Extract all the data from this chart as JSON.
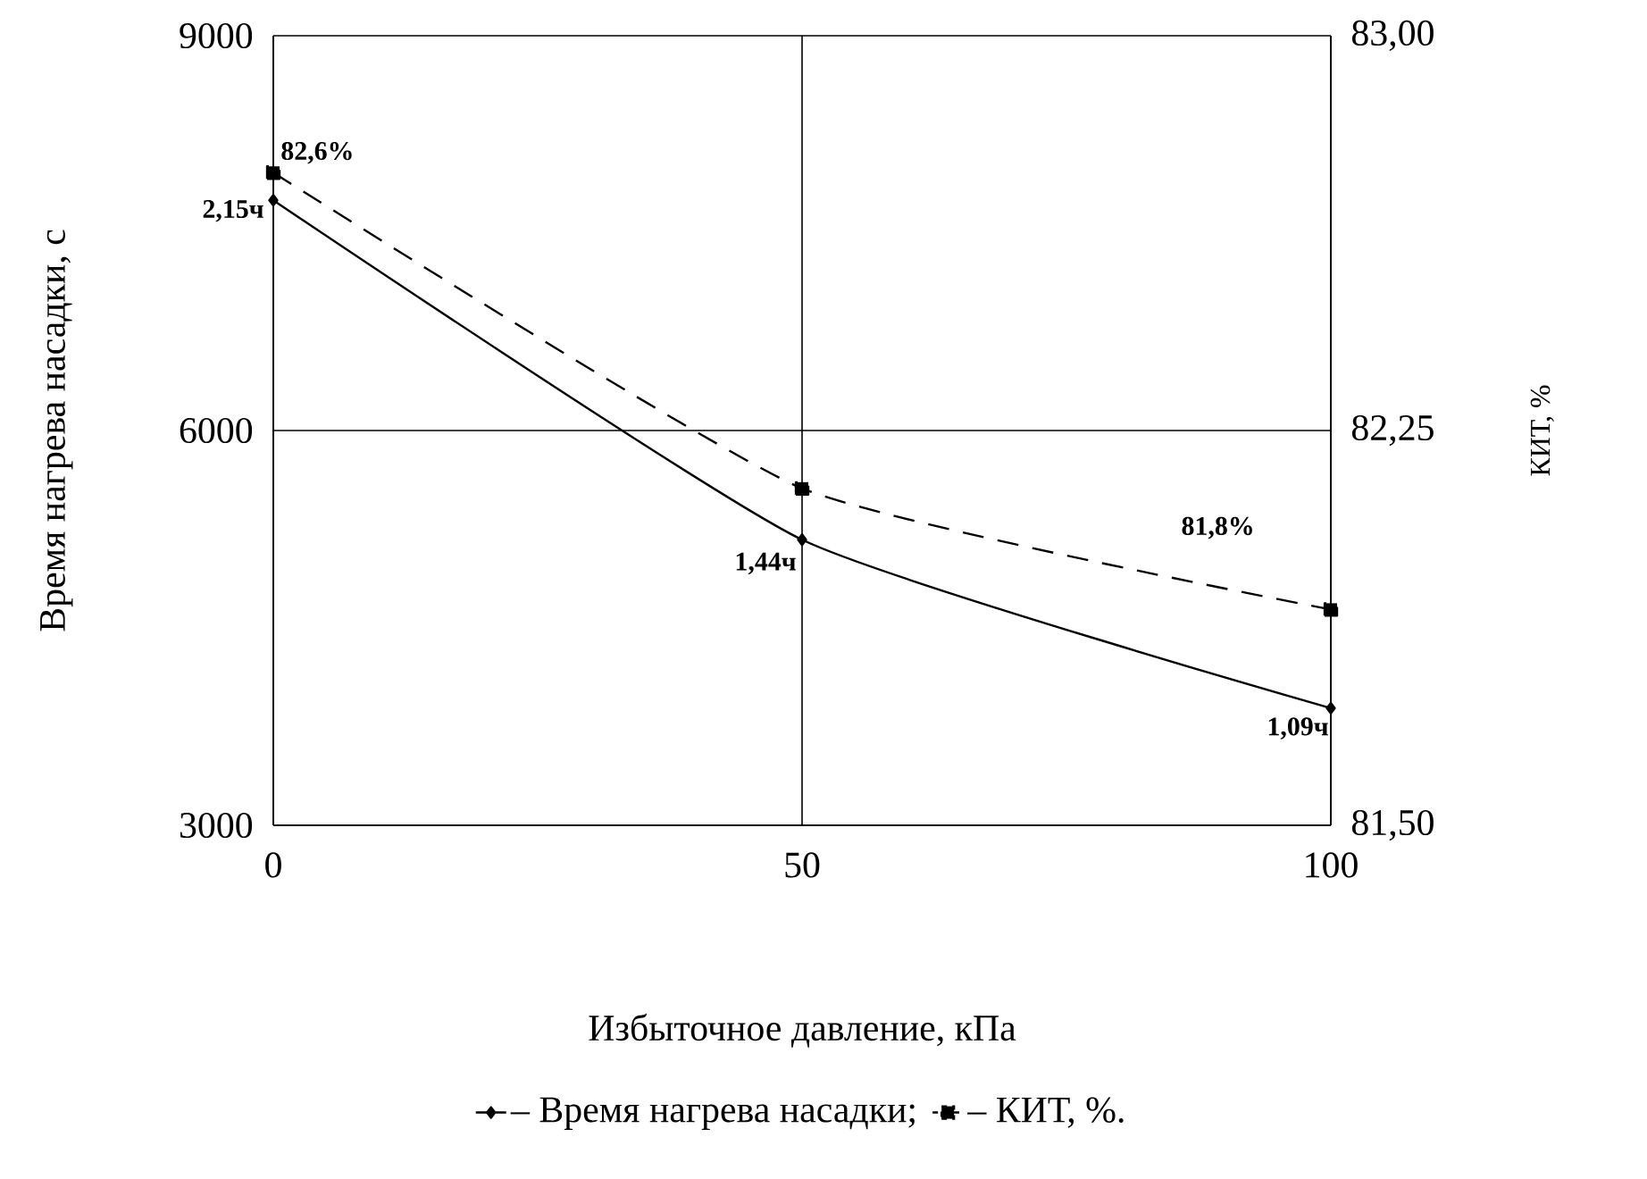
{
  "chart_data": {
    "type": "line",
    "xlabel": "Избыточное давление, кПа",
    "ylabel": "Время нагрева насадки, с",
    "y2label": "КИТ, %",
    "x": [
      0,
      50,
      100
    ],
    "xlim": [
      0,
      100
    ],
    "xticks": [
      0,
      50,
      100
    ],
    "ylim": [
      3000,
      9000
    ],
    "yticks": [
      3000,
      6000,
      9000
    ],
    "y2lim": [
      81.5,
      83.0
    ],
    "y2ticks": [
      {
        "value": 81.5,
        "label": "81,50"
      },
      {
        "value": 82.25,
        "label": "82,25"
      },
      {
        "value": 83.0,
        "label": "83,00"
      }
    ],
    "grid": true,
    "legend": "bottom",
    "annotations": [
      {
        "text": "2,15ч",
        "x": 0,
        "y": 7750
      },
      {
        "text": "1,44ч",
        "x": 50,
        "y": 5170
      },
      {
        "text": "1,09ч",
        "x": 100,
        "y": 3890
      },
      "82,6%",
      "81,8%"
    ],
    "series": [
      {
        "name": "– Время нагрева насадки;",
        "color": "#000000",
        "marker": "diamond",
        "line_style": "solid",
        "values": [
          7750,
          5170,
          3890
        ]
      },
      {
        "name": "– КИТ, %.",
        "color": "#000000",
        "marker": "square",
        "line_style": "dashed",
        "axis": "y2",
        "values": [
          82.74,
          82.14,
          81.91
        ]
      }
    ]
  }
}
